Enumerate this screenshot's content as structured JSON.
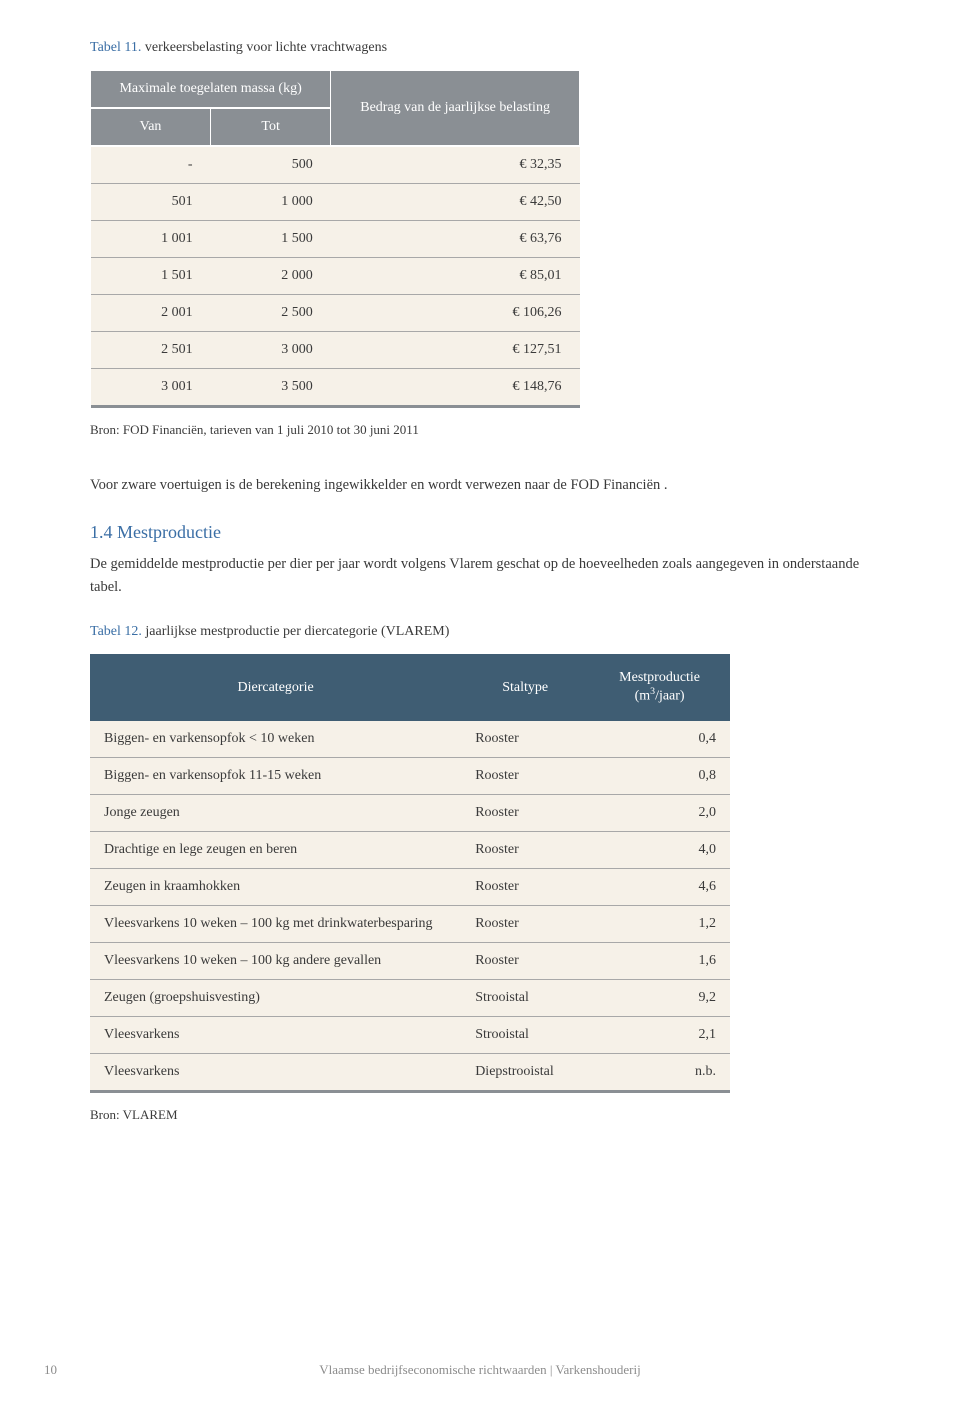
{
  "colors": {
    "header_gray": "#8a8f94",
    "header_blue": "#3f5d73",
    "row_bg": "#f6f1e8",
    "accent_blue": "#3a6ea5",
    "text": "#3a3a3a",
    "footer_gray": "#8c8c8c",
    "page_bg": "#ffffff"
  },
  "table11": {
    "label_prefix": "Tabel  11.",
    "label_text": "verkeersbelasting voor lichte vrachtwagens",
    "header_group": "Maximale toegelaten massa (kg)",
    "header_van": "Van",
    "header_tot": "Tot",
    "header_bedrag": "Bedrag van de jaarlijkse belasting",
    "rows": [
      {
        "van": "-",
        "tot": "500",
        "bedrag": "€ 32,35"
      },
      {
        "van": "501",
        "tot": "1 000",
        "bedrag": "€ 42,50"
      },
      {
        "van": "1 001",
        "tot": "1 500",
        "bedrag": "€ 63,76"
      },
      {
        "van": "1 501",
        "tot": "2 000",
        "bedrag": "€ 85,01"
      },
      {
        "van": "2 001",
        "tot": "2 500",
        "bedrag": "€ 106,26"
      },
      {
        "van": "2 501",
        "tot": "3 000",
        "bedrag": "€ 127,51"
      },
      {
        "van": "3 001",
        "tot": "3 500",
        "bedrag": "€ 148,76"
      }
    ],
    "source": "Bron: FOD Financiën, tarieven van 1 juli 2010 tot 30 juni 2011"
  },
  "para1": "Voor zware voertuigen is de berekening ingewikkelder en wordt verwezen naar de FOD Financiën .",
  "section": {
    "num": "1.4",
    "title": "Mestproductie",
    "intro": "De gemiddelde mestproductie per dier per jaar wordt volgens Vlarem geschat op de hoeveelheden zoals aangegeven in onderstaande tabel."
  },
  "table12": {
    "label_prefix": "Tabel  12.",
    "label_text": "jaarlijkse mestproductie per diercategorie (VLAREM)",
    "header_cat": "Diercategorie",
    "header_stal": "Staltype",
    "header_prod_html": "Mestproductie (m³/jaar)",
    "rows": [
      {
        "cat": "Biggen- en varkensopfok < 10 weken",
        "stal": "Rooster",
        "prod": "0,4"
      },
      {
        "cat": "Biggen- en varkensopfok 11-15 weken",
        "stal": "Rooster",
        "prod": "0,8"
      },
      {
        "cat": "Jonge zeugen",
        "stal": "Rooster",
        "prod": "2,0"
      },
      {
        "cat": "Drachtige en lege zeugen en beren",
        "stal": "Rooster",
        "prod": "4,0"
      },
      {
        "cat": "Zeugen in kraamhokken",
        "stal": "Rooster",
        "prod": "4,6"
      },
      {
        "cat": "Vleesvarkens 10 weken – 100 kg met drinkwaterbesparing",
        "stal": "Rooster",
        "prod": "1,2"
      },
      {
        "cat": "Vleesvarkens 10 weken – 100 kg andere gevallen",
        "stal": "Rooster",
        "prod": "1,6"
      },
      {
        "cat": "Zeugen (groepshuisvesting)",
        "stal": "Strooistal",
        "prod": "9,2"
      },
      {
        "cat": "Vleesvarkens",
        "stal": "Strooistal",
        "prod": "2,1"
      },
      {
        "cat": "Vleesvarkens",
        "stal": "Diepstrooistal",
        "prod": "n.b."
      }
    ],
    "source": "Bron: VLAREM"
  },
  "footer": {
    "page": "10",
    "title": "Vlaamse bedrijfseconomische richtwaarden | Varkenshouderij"
  }
}
